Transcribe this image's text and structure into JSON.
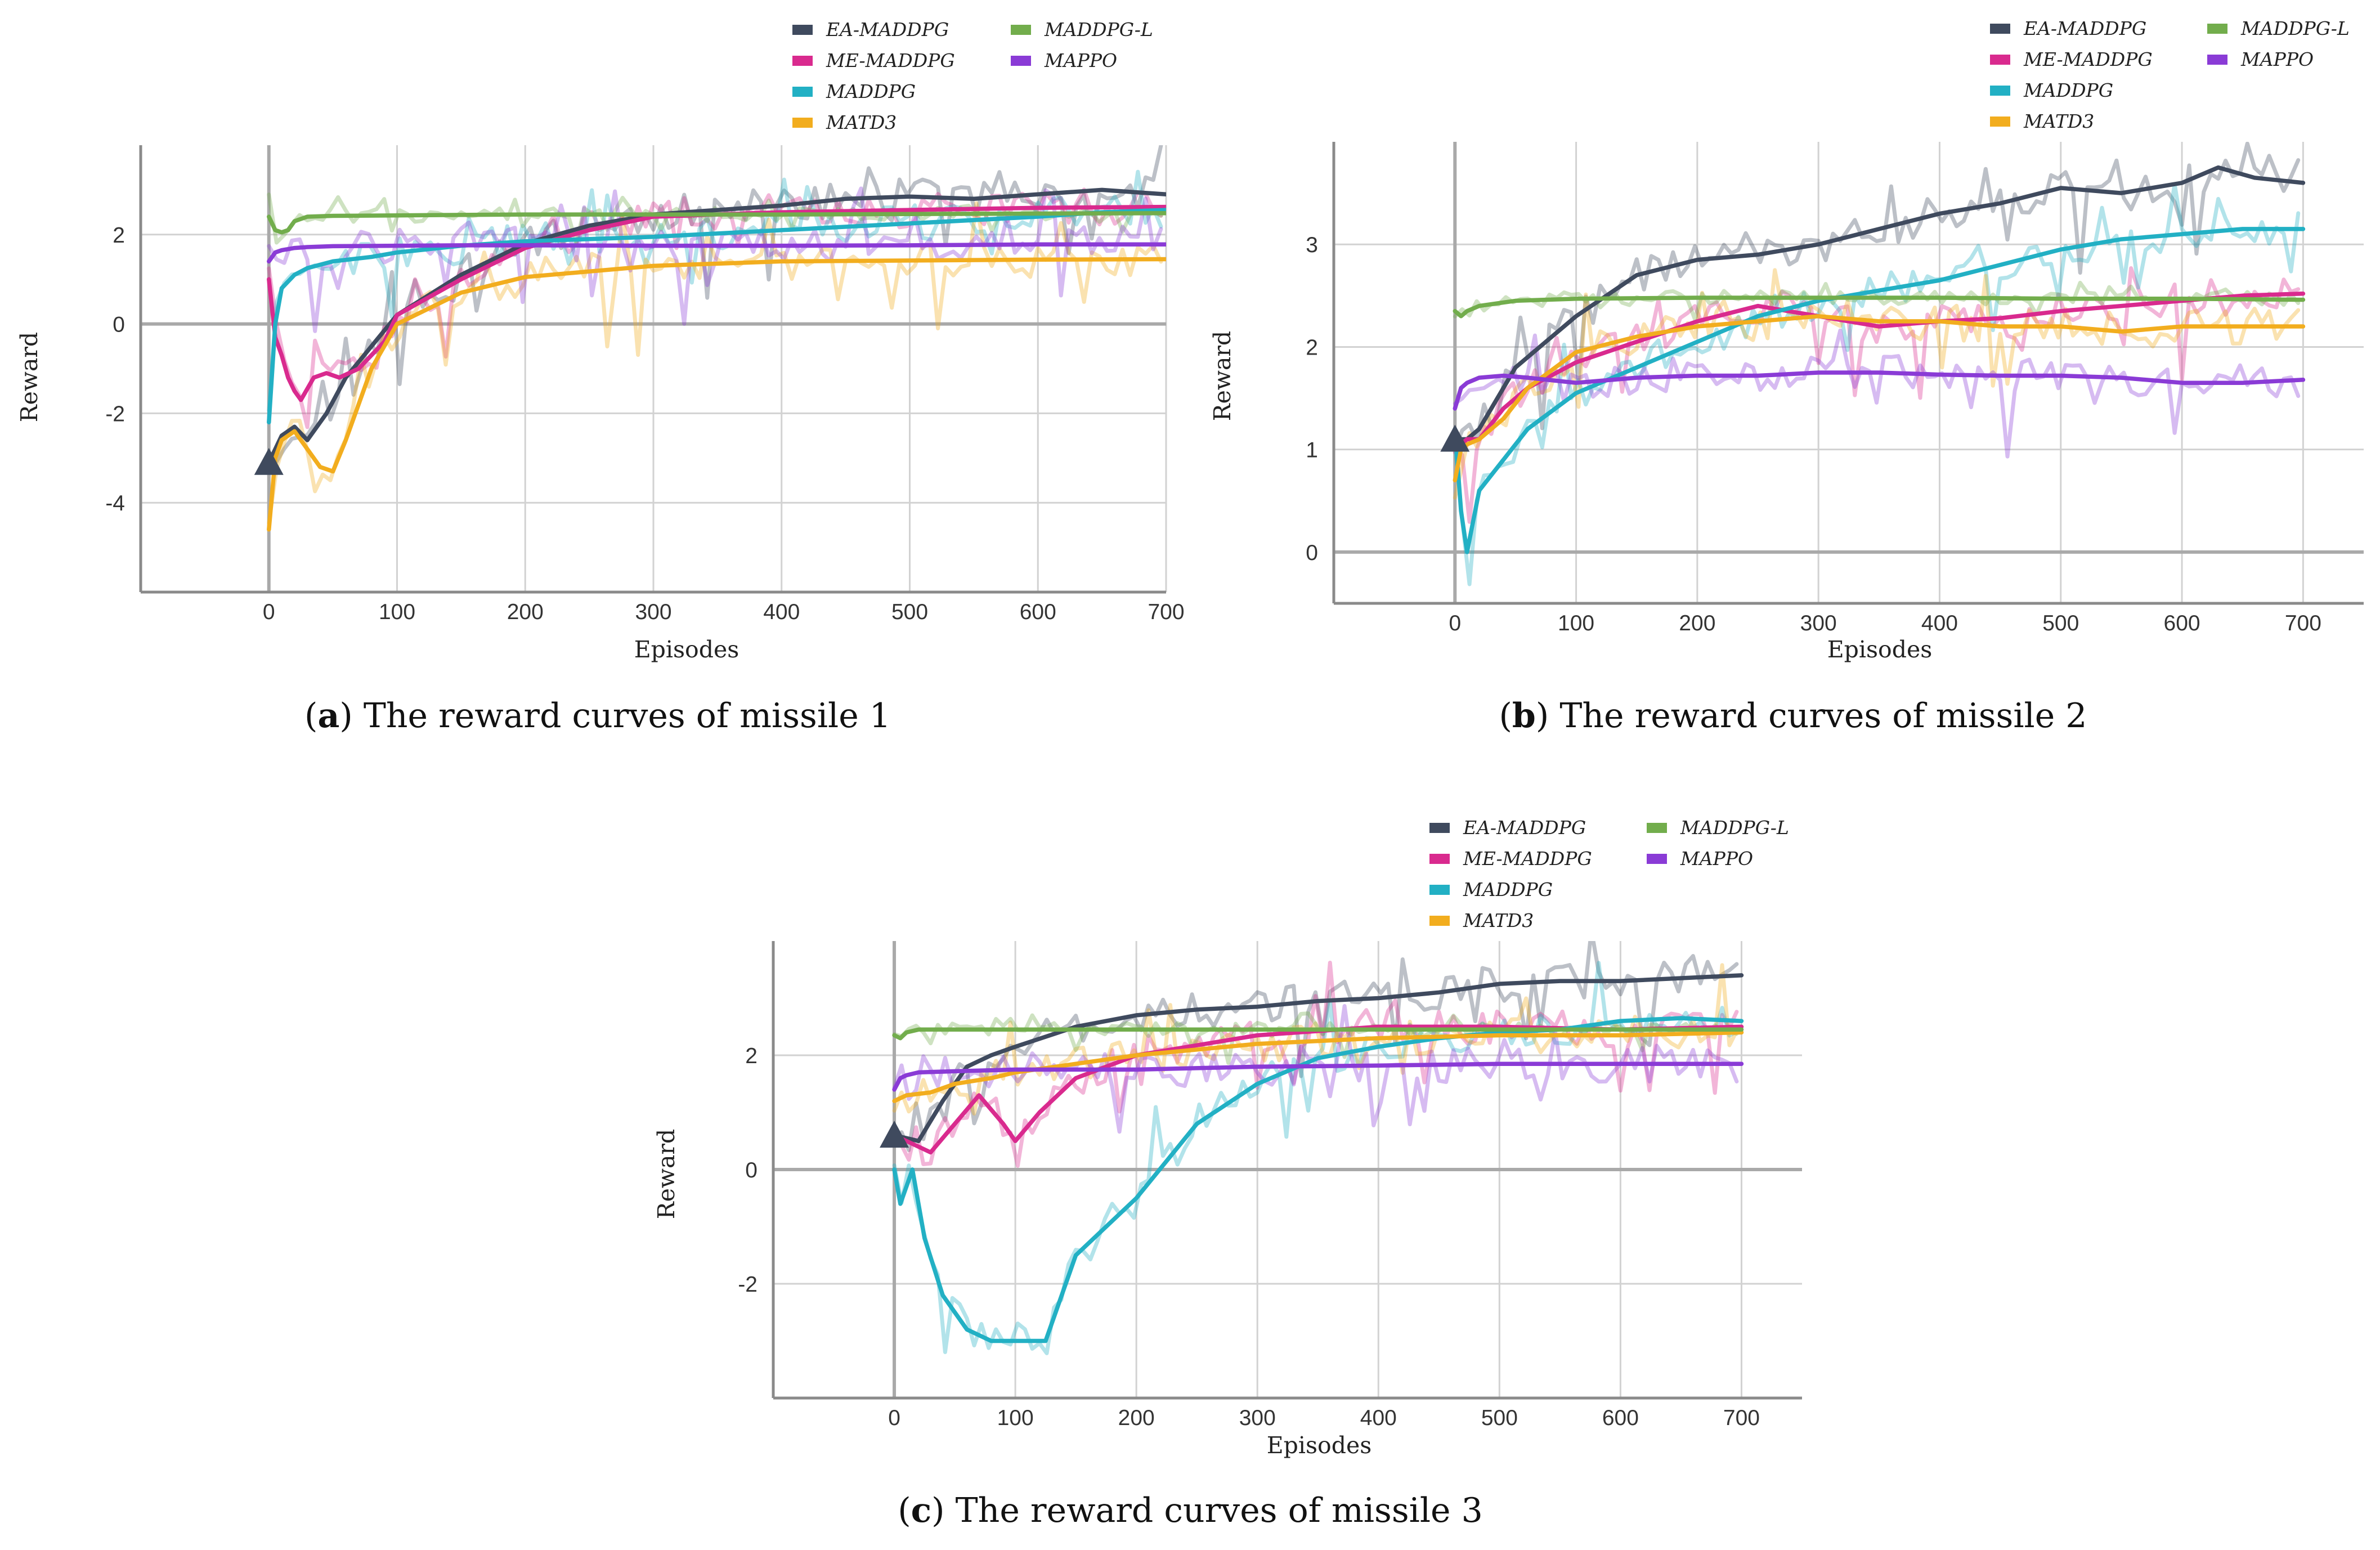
{
  "colors": {
    "EA-MADDPG": "#3f4a5e",
    "ME-MADDPG": "#d92a8e",
    "MADDPG": "#22b0c4",
    "MATD3": "#f2ad1e",
    "MADDPG-L": "#72ad4c",
    "MAPPO": "#8a3bd6"
  },
  "legend_order": [
    "EA-MADDPG",
    "ME-MADDPG",
    "MADDPG",
    "MATD3",
    "MADDPG-L",
    "MAPPO"
  ],
  "chart_data": [
    {
      "type": "line",
      "panel": "a",
      "caption_letter": "a",
      "caption_text": "The reward curves of missile 1",
      "xlabel": "Episodes",
      "ylabel": "Reward",
      "xlim": [
        -100,
        700
      ],
      "ylim": [
        -6,
        4
      ],
      "xticks": [
        0,
        100,
        200,
        300,
        400,
        500,
        600,
        700
      ],
      "yticks": [
        -4,
        -2,
        0,
        2
      ],
      "grid": true,
      "legend": "top",
      "marker": {
        "x": 0,
        "y": -3.1
      },
      "series": [
        {
          "name": "EA-MADDPG",
          "x": [
            0,
            10,
            20,
            30,
            45,
            60,
            80,
            100,
            150,
            200,
            250,
            300,
            400,
            450,
            500,
            550,
            600,
            650,
            700
          ],
          "y": [
            -3.1,
            -2.5,
            -2.3,
            -2.6,
            -2.0,
            -1.2,
            -0.5,
            0.2,
            1.1,
            1.8,
            2.2,
            2.45,
            2.65,
            2.8,
            2.85,
            2.8,
            2.9,
            3.0,
            2.9
          ]
        },
        {
          "name": "ME-MADDPG",
          "x": [
            0,
            5,
            10,
            15,
            20,
            25,
            35,
            45,
            55,
            70,
            90,
            100,
            150,
            200,
            250,
            300,
            400,
            500,
            600,
            700
          ],
          "y": [
            1.0,
            -0.3,
            -0.7,
            -1.2,
            -1.5,
            -1.7,
            -1.2,
            -1.1,
            -1.2,
            -1.0,
            -0.4,
            0.2,
            1.0,
            1.7,
            2.1,
            2.4,
            2.5,
            2.55,
            2.6,
            2.62
          ]
        },
        {
          "name": "MADDPG",
          "x": [
            0,
            5,
            10,
            20,
            30,
            50,
            80,
            100,
            150,
            200,
            300,
            400,
            500,
            600,
            650,
            700
          ],
          "y": [
            -2.2,
            0.0,
            0.8,
            1.1,
            1.25,
            1.4,
            1.5,
            1.6,
            1.75,
            1.85,
            1.95,
            2.1,
            2.25,
            2.4,
            2.5,
            2.55
          ]
        },
        {
          "name": "MATD3",
          "x": [
            0,
            5,
            10,
            20,
            30,
            40,
            50,
            60,
            80,
            100,
            150,
            200,
            300,
            400,
            500,
            600,
            700
          ],
          "y": [
            -4.6,
            -3.0,
            -2.6,
            -2.4,
            -2.8,
            -3.2,
            -3.3,
            -2.6,
            -1.0,
            0.0,
            0.7,
            1.05,
            1.3,
            1.4,
            1.42,
            1.44,
            1.45
          ]
        },
        {
          "name": "MADDPG-L",
          "x": [
            0,
            5,
            10,
            15,
            20,
            30,
            50,
            100,
            200,
            300,
            400,
            500,
            600,
            700
          ],
          "y": [
            2.4,
            2.1,
            2.05,
            2.1,
            2.3,
            2.4,
            2.42,
            2.43,
            2.45,
            2.45,
            2.45,
            2.46,
            2.47,
            2.48
          ]
        },
        {
          "name": "MAPPO",
          "x": [
            0,
            5,
            10,
            20,
            30,
            50,
            100,
            150,
            200,
            300,
            400,
            500,
            600,
            700
          ],
          "y": [
            1.4,
            1.6,
            1.65,
            1.7,
            1.72,
            1.74,
            1.75,
            1.76,
            1.76,
            1.75,
            1.75,
            1.76,
            1.78,
            1.78
          ]
        }
      ]
    },
    {
      "type": "line",
      "panel": "b",
      "caption_letter": "b",
      "caption_text": "The reward curves of missile 2",
      "xlabel": "Episodes",
      "ylabel": "Reward",
      "xlim": [
        -100,
        750
      ],
      "ylim": [
        -0.5,
        4
      ],
      "xticks": [
        0,
        100,
        200,
        300,
        400,
        500,
        600,
        700
      ],
      "yticks": [
        0,
        1,
        2,
        3
      ],
      "grid": true,
      "legend": "top",
      "marker": {
        "x": 0,
        "y": 1.1
      },
      "series": [
        {
          "name": "EA-MADDPG",
          "x": [
            0,
            10,
            20,
            30,
            50,
            80,
            100,
            150,
            200,
            250,
            300,
            350,
            400,
            450,
            500,
            550,
            600,
            630,
            660,
            700
          ],
          "y": [
            1.1,
            1.1,
            1.2,
            1.4,
            1.8,
            2.1,
            2.3,
            2.7,
            2.85,
            2.9,
            3.0,
            3.15,
            3.3,
            3.4,
            3.55,
            3.5,
            3.6,
            3.75,
            3.65,
            3.6
          ]
        },
        {
          "name": "ME-MADDPG",
          "x": [
            0,
            10,
            20,
            40,
            60,
            100,
            150,
            200,
            250,
            300,
            350,
            400,
            450,
            500,
            550,
            600,
            650,
            700
          ],
          "y": [
            1.0,
            1.1,
            1.1,
            1.4,
            1.6,
            1.85,
            2.05,
            2.25,
            2.4,
            2.3,
            2.2,
            2.25,
            2.28,
            2.35,
            2.4,
            2.45,
            2.5,
            2.52
          ]
        },
        {
          "name": "MADDPG",
          "x": [
            0,
            5,
            10,
            20,
            40,
            60,
            100,
            150,
            200,
            250,
            300,
            350,
            400,
            450,
            500,
            550,
            600,
            650,
            700
          ],
          "y": [
            1.2,
            0.4,
            0.0,
            0.6,
            0.9,
            1.2,
            1.55,
            1.8,
            2.05,
            2.3,
            2.45,
            2.55,
            2.65,
            2.8,
            2.95,
            3.05,
            3.1,
            3.15,
            3.15
          ]
        },
        {
          "name": "MATD3",
          "x": [
            0,
            5,
            10,
            20,
            40,
            60,
            100,
            150,
            200,
            250,
            300,
            350,
            400,
            450,
            500,
            550,
            600,
            650,
            700
          ],
          "y": [
            0.7,
            1.0,
            1.05,
            1.1,
            1.3,
            1.6,
            1.95,
            2.1,
            2.2,
            2.25,
            2.3,
            2.25,
            2.25,
            2.2,
            2.2,
            2.15,
            2.2,
            2.2,
            2.2
          ]
        },
        {
          "name": "MADDPG-L",
          "x": [
            0,
            5,
            10,
            20,
            50,
            100,
            200,
            300,
            400,
            500,
            600,
            700
          ],
          "y": [
            2.35,
            2.3,
            2.35,
            2.4,
            2.45,
            2.47,
            2.48,
            2.48,
            2.48,
            2.47,
            2.47,
            2.46
          ]
        },
        {
          "name": "MAPPO",
          "x": [
            0,
            5,
            10,
            20,
            40,
            60,
            100,
            150,
            200,
            250,
            300,
            350,
            400,
            450,
            500,
            550,
            600,
            650,
            700
          ],
          "y": [
            1.4,
            1.6,
            1.65,
            1.7,
            1.72,
            1.7,
            1.65,
            1.7,
            1.72,
            1.72,
            1.75,
            1.75,
            1.73,
            1.72,
            1.72,
            1.7,
            1.65,
            1.65,
            1.68
          ]
        }
      ]
    },
    {
      "type": "line",
      "panel": "c",
      "caption_letter": "c",
      "caption_text": "The reward curves of missile 3",
      "xlabel": "Episodes",
      "ylabel": "Reward",
      "xlim": [
        -100,
        750
      ],
      "ylim": [
        -4,
        4
      ],
      "xticks": [
        0,
        100,
        200,
        300,
        400,
        500,
        600,
        700
      ],
      "yticks": [
        -2,
        0,
        2
      ],
      "grid": true,
      "legend": "top",
      "marker": {
        "x": 0,
        "y": 0.6
      },
      "series": [
        {
          "name": "EA-MADDPG",
          "x": [
            0,
            20,
            40,
            60,
            80,
            100,
            150,
            200,
            250,
            300,
            350,
            400,
            450,
            500,
            550,
            600,
            650,
            700
          ],
          "y": [
            0.6,
            0.5,
            1.2,
            1.8,
            2.0,
            2.15,
            2.5,
            2.7,
            2.8,
            2.85,
            2.95,
            3.0,
            3.1,
            3.25,
            3.3,
            3.3,
            3.35,
            3.4
          ]
        },
        {
          "name": "ME-MADDPG",
          "x": [
            0,
            20,
            30,
            50,
            70,
            90,
            100,
            120,
            150,
            200,
            300,
            400,
            500,
            600,
            700
          ],
          "y": [
            0.6,
            0.4,
            0.3,
            0.8,
            1.3,
            0.8,
            0.5,
            1.0,
            1.6,
            2.0,
            2.35,
            2.5,
            2.5,
            2.45,
            2.5
          ]
        },
        {
          "name": "MADDPG",
          "x": [
            0,
            5,
            15,
            25,
            40,
            60,
            80,
            100,
            125,
            150,
            200,
            250,
            300,
            350,
            400,
            450,
            500,
            550,
            600,
            650,
            700
          ],
          "y": [
            0.0,
            -0.6,
            0.0,
            -1.2,
            -2.2,
            -2.8,
            -3.0,
            -3.0,
            -3.0,
            -1.5,
            -0.5,
            0.8,
            1.5,
            1.95,
            2.15,
            2.3,
            2.4,
            2.45,
            2.6,
            2.65,
            2.6
          ]
        },
        {
          "name": "MATD3",
          "x": [
            0,
            10,
            30,
            50,
            80,
            100,
            150,
            200,
            300,
            400,
            500,
            600,
            700
          ],
          "y": [
            1.2,
            1.3,
            1.35,
            1.5,
            1.6,
            1.7,
            1.85,
            2.0,
            2.2,
            2.3,
            2.35,
            2.35,
            2.4
          ]
        },
        {
          "name": "MADDPG-L",
          "x": [
            0,
            5,
            10,
            20,
            50,
            100,
            200,
            300,
            400,
            500,
            600,
            700
          ],
          "y": [
            2.35,
            2.3,
            2.4,
            2.45,
            2.45,
            2.45,
            2.45,
            2.45,
            2.45,
            2.45,
            2.45,
            2.45
          ]
        },
        {
          "name": "MAPPO",
          "x": [
            0,
            5,
            10,
            20,
            50,
            100,
            150,
            200,
            300,
            400,
            500,
            600,
            700
          ],
          "y": [
            1.4,
            1.6,
            1.65,
            1.7,
            1.72,
            1.75,
            1.75,
            1.75,
            1.8,
            1.82,
            1.85,
            1.85,
            1.85
          ]
        }
      ]
    }
  ]
}
